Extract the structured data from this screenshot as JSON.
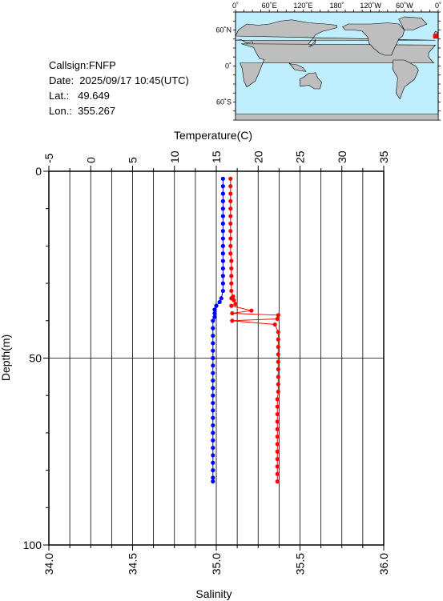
{
  "station": {
    "callsign": "Callsign:FNFP",
    "date": "Date:  2025/09/17 10:45(UTC)",
    "lat": "Lat.:   49.649",
    "lon": "Lon.:  355.267"
  },
  "map": {
    "lon_labels": [
      "0˚",
      "60˚E",
      "120˚E",
      "180˚",
      "120˚W",
      "60˚W",
      "0˚"
    ],
    "lat_labels": [
      "60˚N",
      "0˚",
      "60˚S"
    ],
    "ocean_color": "#bfefff",
    "land_color": "#bebebe",
    "marker_color": "#ff0000",
    "marker_lon": 355.267,
    "marker_lat": 49.649
  },
  "chart_data": {
    "type": "scatter",
    "top_axis": {
      "label": "Temperature(C)",
      "range": [
        -5,
        35
      ],
      "ticks": [
        "-5",
        "0",
        "5",
        "10",
        "15",
        "20",
        "25",
        "30",
        "35"
      ]
    },
    "bottom_axis": {
      "label": "Salinity",
      "range": [
        34.0,
        36.0
      ],
      "ticks": [
        "34.0",
        "34.5",
        "35.0",
        "35.5",
        "36.0"
      ]
    },
    "y_axis": {
      "label": "Depth(m)",
      "range": [
        0,
        100
      ],
      "inverted": true,
      "ticks": [
        "0",
        "50",
        "100"
      ]
    },
    "grid": true,
    "series": [
      {
        "axis": "temperature",
        "color": "#ff0000",
        "points": [
          [
            16.7,
            2
          ],
          [
            16.7,
            4
          ],
          [
            16.7,
            6
          ],
          [
            16.7,
            8
          ],
          [
            16.7,
            10
          ],
          [
            16.7,
            12
          ],
          [
            16.7,
            14
          ],
          [
            16.7,
            16
          ],
          [
            16.7,
            18
          ],
          [
            16.7,
            20
          ],
          [
            16.7,
            22
          ],
          [
            16.8,
            24
          ],
          [
            16.8,
            26
          ],
          [
            16.8,
            28
          ],
          [
            16.8,
            30
          ],
          [
            16.8,
            32
          ],
          [
            16.8,
            34
          ],
          [
            16.8,
            36
          ],
          [
            16.9,
            38
          ],
          [
            16.9,
            40
          ],
          [
            17.0,
            33.5
          ],
          [
            17.1,
            34.5
          ],
          [
            17.3,
            35.5
          ],
          [
            19.2,
            37.3
          ],
          [
            22.4,
            38.5
          ],
          [
            22.3,
            39.5
          ],
          [
            22.0,
            41
          ],
          [
            22.4,
            43
          ],
          [
            22.4,
            45
          ],
          [
            22.4,
            47
          ],
          [
            22.4,
            49
          ],
          [
            22.4,
            51
          ],
          [
            22.4,
            53
          ],
          [
            22.4,
            55
          ],
          [
            22.4,
            57
          ],
          [
            22.4,
            59
          ],
          [
            22.3,
            61
          ],
          [
            22.3,
            63
          ],
          [
            22.3,
            65
          ],
          [
            22.3,
            67
          ],
          [
            22.3,
            69
          ],
          [
            22.3,
            71
          ],
          [
            22.3,
            73
          ],
          [
            22.3,
            75
          ],
          [
            22.3,
            77
          ],
          [
            22.3,
            79
          ],
          [
            22.3,
            81
          ],
          [
            22.3,
            83
          ]
        ],
        "note_order": "depth"
      },
      {
        "axis": "salinity",
        "color": "#0000ff",
        "points": [
          [
            35.04,
            2
          ],
          [
            35.04,
            4
          ],
          [
            35.04,
            6
          ],
          [
            35.04,
            8
          ],
          [
            35.04,
            10
          ],
          [
            35.04,
            12
          ],
          [
            35.04,
            14
          ],
          [
            35.04,
            16
          ],
          [
            35.04,
            18
          ],
          [
            35.04,
            20
          ],
          [
            35.04,
            22
          ],
          [
            35.04,
            24
          ],
          [
            35.04,
            26
          ],
          [
            35.04,
            28
          ],
          [
            35.04,
            30
          ],
          [
            35.04,
            32
          ],
          [
            35.03,
            34
          ],
          [
            35.02,
            35
          ],
          [
            35.0,
            36
          ],
          [
            34.99,
            37
          ],
          [
            34.99,
            38
          ],
          [
            34.99,
            39
          ],
          [
            34.98,
            40
          ],
          [
            34.98,
            42
          ],
          [
            34.98,
            44
          ],
          [
            34.98,
            46
          ],
          [
            34.98,
            48
          ],
          [
            34.98,
            50
          ],
          [
            34.98,
            52
          ],
          [
            34.98,
            54
          ],
          [
            34.98,
            56
          ],
          [
            34.98,
            58
          ],
          [
            34.98,
            60
          ],
          [
            34.98,
            62
          ],
          [
            34.98,
            64
          ],
          [
            34.98,
            66
          ],
          [
            34.98,
            68
          ],
          [
            34.98,
            70
          ],
          [
            34.98,
            72
          ],
          [
            34.98,
            74
          ],
          [
            34.98,
            76
          ],
          [
            34.98,
            78
          ],
          [
            34.98,
            80
          ],
          [
            34.98,
            82
          ],
          [
            34.98,
            83
          ]
        ]
      }
    ]
  }
}
